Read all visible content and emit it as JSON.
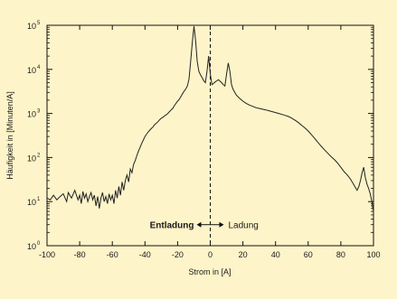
{
  "chart_data": {
    "type": "line",
    "xlabel": "Strom in [A]",
    "ylabel": "Häufigkeit in [Minuten/A]",
    "xlim": [
      -100,
      100
    ],
    "ylim": [
      1,
      100000
    ],
    "yscale": "log",
    "xticks": [
      -100,
      -80,
      -60,
      -40,
      -20,
      0,
      20,
      40,
      60,
      80,
      100
    ],
    "ytick_labels": [
      {
        "exp": "0",
        "value": 1
      },
      {
        "exp": "1",
        "value": 10
      },
      {
        "exp": "2",
        "value": 100
      },
      {
        "exp": "3",
        "value": 1000
      },
      {
        "exp": "4",
        "value": 10000
      },
      {
        "exp": "5",
        "value": 100000
      }
    ],
    "grid": false,
    "annotations": {
      "left": "Entladung",
      "right": "Ladung",
      "divider_x": 0
    },
    "series": [
      {
        "color": "#222222",
        "points": [
          [
            -100,
            12
          ],
          [
            -98,
            11
          ],
          [
            -96,
            14
          ],
          [
            -94,
            11
          ],
          [
            -92,
            13
          ],
          [
            -90,
            15
          ],
          [
            -88,
            10
          ],
          [
            -87,
            16
          ],
          [
            -85,
            12
          ],
          [
            -83,
            18
          ],
          [
            -81,
            11
          ],
          [
            -80,
            14
          ],
          [
            -79,
            9
          ],
          [
            -78,
            17
          ],
          [
            -77,
            12
          ],
          [
            -76,
            15
          ],
          [
            -75,
            10
          ],
          [
            -74,
            13
          ],
          [
            -73,
            16
          ],
          [
            -72,
            11
          ],
          [
            -71,
            14
          ],
          [
            -70,
            8
          ],
          [
            -69,
            13
          ],
          [
            -68,
            7
          ],
          [
            -67,
            12
          ],
          [
            -66,
            16
          ],
          [
            -65,
            10
          ],
          [
            -64,
            13
          ],
          [
            -63,
            9
          ],
          [
            -62,
            15
          ],
          [
            -61,
            11
          ],
          [
            -60,
            14
          ],
          [
            -59,
            9
          ],
          [
            -58,
            18
          ],
          [
            -57,
            12
          ],
          [
            -56,
            22
          ],
          [
            -55,
            14
          ],
          [
            -54,
            28
          ],
          [
            -53,
            18
          ],
          [
            -52,
            30
          ],
          [
            -51,
            40
          ],
          [
            -50,
            28
          ],
          [
            -49,
            55
          ],
          [
            -48,
            45
          ],
          [
            -47,
            70
          ],
          [
            -46,
            85
          ],
          [
            -45,
            110
          ],
          [
            -44,
            140
          ],
          [
            -43,
            170
          ],
          [
            -42,
            210
          ],
          [
            -41,
            250
          ],
          [
            -40,
            300
          ],
          [
            -39,
            340
          ],
          [
            -38,
            380
          ],
          [
            -37,
            420
          ],
          [
            -36,
            460
          ],
          [
            -35,
            500
          ],
          [
            -34,
            560
          ],
          [
            -33,
            600
          ],
          [
            -32,
            650
          ],
          [
            -31,
            720
          ],
          [
            -30,
            780
          ],
          [
            -29,
            820
          ],
          [
            -28,
            880
          ],
          [
            -27,
            930
          ],
          [
            -26,
            1000
          ],
          [
            -25,
            1100
          ],
          [
            -24,
            1200
          ],
          [
            -23,
            1300
          ],
          [
            -22,
            1500
          ],
          [
            -21,
            1700
          ],
          [
            -20,
            1900
          ],
          [
            -19,
            2100
          ],
          [
            -18,
            2400
          ],
          [
            -17,
            2800
          ],
          [
            -16,
            3200
          ],
          [
            -15,
            3600
          ],
          [
            -14,
            4200
          ],
          [
            -13,
            6000
          ],
          [
            -12,
            15000
          ],
          [
            -11,
            40000
          ],
          [
            -10,
            95000
          ],
          [
            -9,
            45000
          ],
          [
            -8,
            15000
          ],
          [
            -7,
            9000
          ],
          [
            -6,
            7500
          ],
          [
            -5,
            6500
          ],
          [
            -4,
            5500
          ],
          [
            -3,
            5000
          ],
          [
            -2,
            9000
          ],
          [
            -1,
            20000
          ],
          [
            0,
            8000
          ],
          [
            1,
            4500
          ],
          [
            2,
            4800
          ],
          [
            3,
            5200
          ],
          [
            4,
            5500
          ],
          [
            5,
            5800
          ],
          [
            6,
            5400
          ],
          [
            7,
            5000
          ],
          [
            8,
            4500
          ],
          [
            9,
            4200
          ],
          [
            10,
            8000
          ],
          [
            11,
            14000
          ],
          [
            12,
            9000
          ],
          [
            13,
            4500
          ],
          [
            14,
            3500
          ],
          [
            15,
            3000
          ],
          [
            16,
            2600
          ],
          [
            18,
            2200
          ],
          [
            20,
            1900
          ],
          [
            22,
            1700
          ],
          [
            24,
            1550
          ],
          [
            26,
            1450
          ],
          [
            28,
            1350
          ],
          [
            30,
            1300
          ],
          [
            32,
            1250
          ],
          [
            34,
            1200
          ],
          [
            36,
            1150
          ],
          [
            38,
            1100
          ],
          [
            40,
            1050
          ],
          [
            42,
            1000
          ],
          [
            44,
            950
          ],
          [
            46,
            900
          ],
          [
            48,
            850
          ],
          [
            50,
            780
          ],
          [
            52,
            700
          ],
          [
            54,
            620
          ],
          [
            56,
            540
          ],
          [
            58,
            470
          ],
          [
            60,
            400
          ],
          [
            62,
            330
          ],
          [
            64,
            270
          ],
          [
            66,
            220
          ],
          [
            68,
            180
          ],
          [
            70,
            150
          ],
          [
            72,
            125
          ],
          [
            74,
            105
          ],
          [
            76,
            90
          ],
          [
            78,
            75
          ],
          [
            80,
            60
          ],
          [
            82,
            48
          ],
          [
            84,
            40
          ],
          [
            86,
            32
          ],
          [
            88,
            24
          ],
          [
            90,
            18
          ],
          [
            91,
            22
          ],
          [
            92,
            30
          ],
          [
            93,
            45
          ],
          [
            94,
            60
          ],
          [
            95,
            35
          ],
          [
            96,
            25
          ],
          [
            97,
            20
          ],
          [
            98,
            15
          ],
          [
            99,
            10
          ],
          [
            100,
            6
          ]
        ]
      }
    ]
  }
}
